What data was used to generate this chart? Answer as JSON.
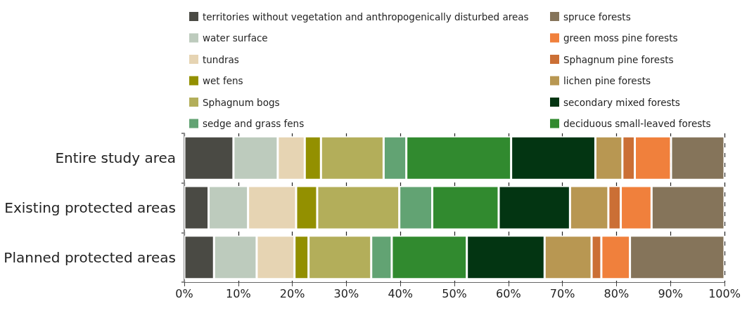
{
  "chart_data": {
    "type": "bar",
    "orientation": "horizontal",
    "stacked": true,
    "categories": [
      "Entire study area",
      "Existing protected areas",
      "Planned protected areas"
    ],
    "series": [
      {
        "name": "territories without vegetation and anthropogenically disturbed areas",
        "color": "#4a4a44",
        "values": [
          9.1,
          4.5,
          5.5
        ]
      },
      {
        "name": "water surface",
        "color": "#bdcbbd",
        "values": [
          8.2,
          7.3,
          7.9
        ]
      },
      {
        "name": "tundras",
        "color": "#e6d4b3",
        "values": [
          5.0,
          8.9,
          7.0
        ]
      },
      {
        "name": "wet fens",
        "color": "#939000",
        "values": [
          3.0,
          3.9,
          2.6
        ]
      },
      {
        "name": "Sphagnum bogs",
        "color": "#b3ae5a",
        "values": [
          11.6,
          15.2,
          11.6
        ]
      },
      {
        "name": "sedge and grass fens",
        "color": "#62a373",
        "values": [
          4.2,
          6.1,
          3.8
        ]
      },
      {
        "name": "deciduous small-leaved forests",
        "color": "#318a2f",
        "values": [
          19.4,
          12.3,
          13.9
        ]
      },
      {
        "name": "secondary mixed forests",
        "color": "#033512",
        "values": [
          15.6,
          13.2,
          14.4
        ]
      },
      {
        "name": "lichen pine forests",
        "color": "#b89752",
        "values": [
          5.0,
          7.1,
          8.7
        ]
      },
      {
        "name": "Sphagnum pine forests",
        "color": "#cb6f35",
        "values": [
          2.3,
          2.3,
          1.8
        ]
      },
      {
        "name": "green moss pine forests",
        "color": "#f0803c",
        "values": [
          6.7,
          5.7,
          5.3
        ]
      },
      {
        "name": "spruce forests",
        "color": "#85745a",
        "values": [
          9.9,
          13.5,
          17.5
        ]
      }
    ],
    "xlim": [
      0,
      100
    ],
    "xticks": [
      {
        "value": 0,
        "label": "0%"
      },
      {
        "value": 10,
        "label": "10%"
      },
      {
        "value": 20,
        "label": "20%"
      },
      {
        "value": 30,
        "label": "30%"
      },
      {
        "value": 40,
        "label": "40%"
      },
      {
        "value": 50,
        "label": "50%"
      },
      {
        "value": 60,
        "label": "60%"
      },
      {
        "value": 70,
        "label": "70%"
      },
      {
        "value": 80,
        "label": "80%"
      },
      {
        "value": 90,
        "label": "90%"
      },
      {
        "value": 100,
        "label": "100%"
      }
    ],
    "grid": "x",
    "legend": "top"
  }
}
